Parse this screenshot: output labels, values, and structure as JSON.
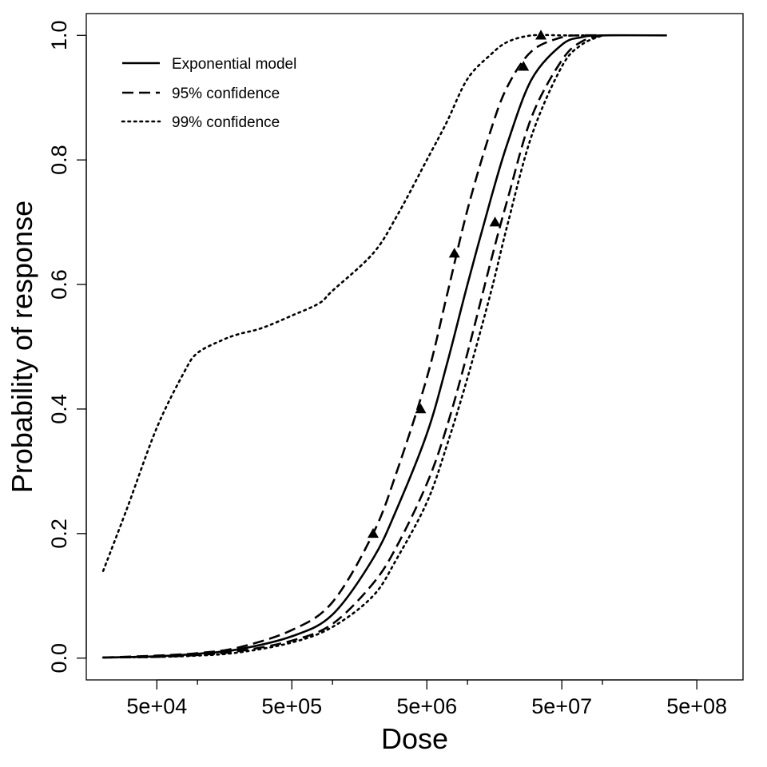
{
  "chart_data": {
    "type": "line",
    "title": "",
    "xlabel": "Dose",
    "ylabel": "Probability of response",
    "x_scale": "log",
    "xlim": [
      15000,
      1100000000
    ],
    "ylim": [
      -0.035,
      1.035
    ],
    "grid": false,
    "legend_position": "top-left",
    "x_ticks": [
      {
        "value": 50000,
        "label": "5e+04"
      },
      {
        "value": 500000,
        "label": "5e+05"
      },
      {
        "value": 5000000,
        "label": "5e+06"
      },
      {
        "value": 50000000,
        "label": "5e+07"
      },
      {
        "value": 500000000,
        "label": "5e+08"
      }
    ],
    "x_minor_ticks": [
      100000,
      1000000,
      10000000,
      100000000
    ],
    "y_ticks": [
      {
        "value": 0.0,
        "label": "0.0"
      },
      {
        "value": 0.2,
        "label": "0.2"
      },
      {
        "value": 0.4,
        "label": "0.4"
      },
      {
        "value": 0.6,
        "label": "0.6"
      },
      {
        "value": 0.8,
        "label": "0.8"
      },
      {
        "value": 1.0,
        "label": "1.0"
      }
    ],
    "series": [
      {
        "name": "Exponential model",
        "style": "solid",
        "x": [
          20000,
          50000,
          100000,
          200000,
          500000,
          1000000,
          2000000,
          3000000,
          5000000,
          7000000,
          10000000,
          15000000,
          20000000,
          30000000,
          50000000,
          70000000,
          100000000,
          300000000
        ],
        "y": [
          0.001,
          0.003,
          0.007,
          0.014,
          0.035,
          0.07,
          0.16,
          0.24,
          0.36,
          0.47,
          0.6,
          0.74,
          0.83,
          0.93,
          0.985,
          0.997,
          1.0,
          1.0
        ]
      },
      {
        "name": "95% confidence",
        "style": "dashed",
        "x": [
          20000,
          50000,
          100000,
          200000,
          500000,
          1000000,
          2000000,
          3000000,
          5000000,
          7000000,
          10000000,
          15000000,
          20000000,
          30000000,
          50000000,
          70000000,
          100000000
        ],
        "y": [
          0.001,
          0.004,
          0.008,
          0.017,
          0.045,
          0.09,
          0.2,
          0.3,
          0.45,
          0.58,
          0.72,
          0.85,
          0.92,
          0.975,
          0.997,
          1.0,
          1.0
        ]
      },
      {
        "name": "",
        "style": "dashed",
        "x": [
          20000,
          50000,
          100000,
          200000,
          500000,
          1000000,
          2000000,
          3000000,
          5000000,
          7000000,
          10000000,
          15000000,
          20000000,
          30000000,
          50000000,
          70000000,
          100000000
        ],
        "y": [
          0.001,
          0.002,
          0.005,
          0.011,
          0.028,
          0.055,
          0.12,
          0.18,
          0.28,
          0.37,
          0.49,
          0.64,
          0.74,
          0.87,
          0.96,
          0.99,
          1.0
        ]
      },
      {
        "name": "99% confidence",
        "style": "dotted",
        "x": [
          20000,
          30000,
          50000,
          80000,
          100000,
          150000,
          200000,
          300000,
          500000,
          800000,
          1000000,
          2000000,
          3000000,
          5000000,
          7000000,
          10000000,
          15000000,
          20000000,
          30000000,
          50000000,
          70000000,
          100000000
        ],
        "y": [
          0.14,
          0.24,
          0.37,
          0.46,
          0.49,
          0.51,
          0.52,
          0.53,
          0.55,
          0.57,
          0.59,
          0.65,
          0.71,
          0.8,
          0.86,
          0.93,
          0.97,
          0.99,
          1.0,
          1.0,
          1.0,
          1.0
        ]
      },
      {
        "name": "",
        "style": "dotted",
        "x": [
          20000,
          50000,
          100000,
          200000,
          500000,
          1000000,
          2000000,
          3000000,
          5000000,
          7000000,
          10000000,
          15000000,
          20000000,
          30000000,
          50000000,
          70000000,
          100000000
        ],
        "y": [
          0.001,
          0.002,
          0.004,
          0.009,
          0.025,
          0.05,
          0.1,
          0.16,
          0.25,
          0.34,
          0.45,
          0.59,
          0.7,
          0.84,
          0.95,
          0.985,
          1.0
        ]
      }
    ],
    "points": {
      "marker": "triangle",
      "x": [
        2000000,
        4500000,
        8000000,
        16000000,
        26000000,
        35000000
      ],
      "y": [
        0.2,
        0.4,
        0.65,
        0.7,
        0.95,
        1.0
      ]
    }
  }
}
